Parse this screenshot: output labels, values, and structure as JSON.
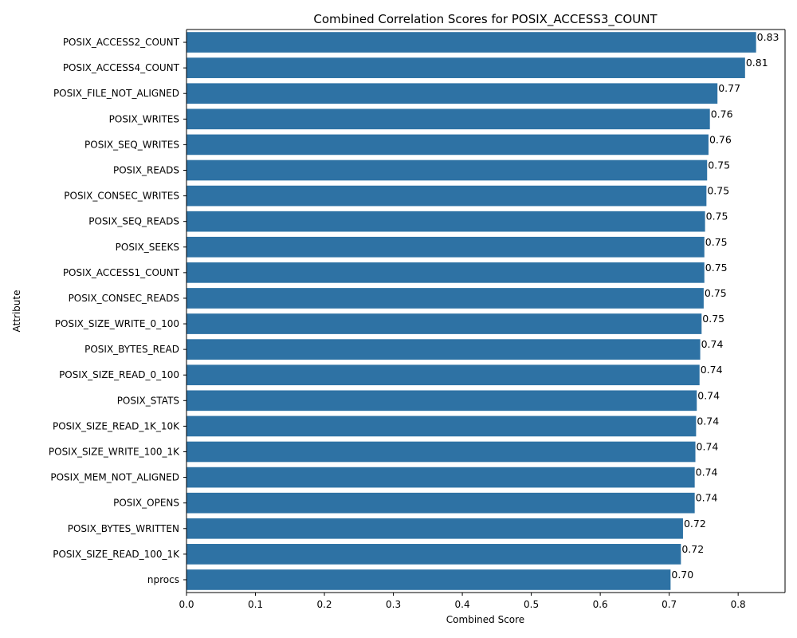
{
  "chart_data": {
    "type": "bar",
    "orientation": "horizontal",
    "title": "Combined Correlation Scores for POSIX_ACCESS3_COUNT",
    "xlabel": "Combined Score",
    "ylabel": "Attribute",
    "xlim": [
      0,
      0.868
    ],
    "xticks": [
      "0.0",
      "0.1",
      "0.2",
      "0.3",
      "0.4",
      "0.5",
      "0.6",
      "0.7",
      "0.8"
    ],
    "grid": false,
    "bar_color": "#2e72a4",
    "categories": [
      "POSIX_ACCESS2_COUNT",
      "POSIX_ACCESS4_COUNT",
      "POSIX_FILE_NOT_ALIGNED",
      "POSIX_WRITES",
      "POSIX_SEQ_WRITES",
      "POSIX_READS",
      "POSIX_CONSEC_WRITES",
      "POSIX_SEQ_READS",
      "POSIX_SEEKS",
      "POSIX_ACCESS1_COUNT",
      "POSIX_CONSEC_READS",
      "POSIX_SIZE_WRITE_0_100",
      "POSIX_BYTES_READ",
      "POSIX_SIZE_READ_0_100",
      "POSIX_STATS",
      "POSIX_SIZE_READ_1K_10K",
      "POSIX_SIZE_WRITE_100_1K",
      "POSIX_MEM_NOT_ALIGNED",
      "POSIX_OPENS",
      "POSIX_BYTES_WRITTEN",
      "POSIX_SIZE_READ_100_1K",
      "nprocs"
    ],
    "values": [
      0.826,
      0.81,
      0.77,
      0.759,
      0.757,
      0.755,
      0.754,
      0.752,
      0.751,
      0.751,
      0.75,
      0.747,
      0.745,
      0.744,
      0.74,
      0.739,
      0.738,
      0.737,
      0.737,
      0.72,
      0.717,
      0.702
    ],
    "data_labels": [
      "0.83",
      "0.81",
      "0.77",
      "0.76",
      "0.76",
      "0.75",
      "0.75",
      "0.75",
      "0.75",
      "0.75",
      "0.75",
      "0.75",
      "0.74",
      "0.74",
      "0.74",
      "0.74",
      "0.74",
      "0.74",
      "0.74",
      "0.72",
      "0.72",
      "0.70"
    ]
  }
}
